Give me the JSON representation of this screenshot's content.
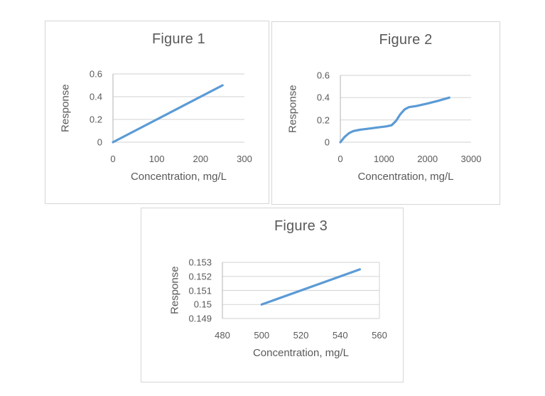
{
  "colors": {
    "accent": "#5B9BD5",
    "grid": "#D9D9D9",
    "axis": "#BFBFBF",
    "text": "#595959",
    "panel_border": "#D6D6D6"
  },
  "chart_data": [
    {
      "type": "line",
      "title": "Figure 1",
      "xlabel": "Concentration, mg/L",
      "ylabel": "Response",
      "xlim": [
        0,
        300
      ],
      "ylim": [
        0,
        0.6
      ],
      "xticks": [
        "0",
        "100",
        "200",
        "300"
      ],
      "yticks": [
        "0",
        "0.2",
        "0.4",
        "0.6"
      ],
      "grid": "horizontal",
      "legend": "none",
      "series": [
        {
          "name": "Response",
          "x": [
            0,
            250
          ],
          "y": [
            0,
            0.5
          ]
        }
      ]
    },
    {
      "type": "line",
      "title": "Figure 2",
      "xlabel": "Concentration, mg/L",
      "ylabel": "Response",
      "xlim": [
        0,
        3000
      ],
      "ylim": [
        0,
        0.6
      ],
      "xticks": [
        "0",
        "1000",
        "2000",
        "3000"
      ],
      "yticks": [
        "0",
        "0.2",
        "0.4",
        "0.6"
      ],
      "grid": "horizontal",
      "legend": "none",
      "series": [
        {
          "name": "Response",
          "x": [
            0,
            100,
            200,
            300,
            450,
            650,
            850,
            1050,
            1175,
            1275,
            1375,
            1475,
            1575,
            1750,
            2000,
            2250,
            2500
          ],
          "y": [
            0,
            0.048,
            0.082,
            0.1,
            0.112,
            0.122,
            0.132,
            0.142,
            0.152,
            0.19,
            0.25,
            0.295,
            0.315,
            0.325,
            0.347,
            0.372,
            0.4
          ]
        }
      ]
    },
    {
      "type": "line",
      "title": "Figure 3",
      "xlabel": "Concentration, mg/L",
      "ylabel": "Response",
      "xlim": [
        480,
        560
      ],
      "ylim": [
        0.149,
        0.153
      ],
      "xticks": [
        "480",
        "500",
        "520",
        "540",
        "560"
      ],
      "yticks": [
        "0.149",
        "0.15",
        "0.151",
        "0.152",
        "0.153"
      ],
      "grid": "horizontal",
      "legend": "none",
      "series": [
        {
          "name": "Response",
          "x": [
            500,
            550
          ],
          "y": [
            0.15,
            0.1525
          ]
        }
      ]
    }
  ]
}
